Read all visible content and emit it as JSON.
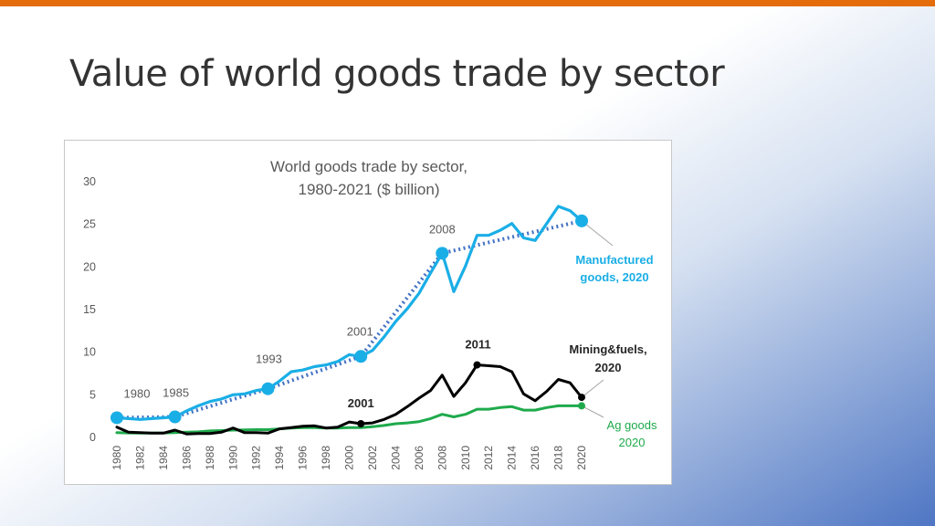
{
  "slide": {
    "title": "Value of world goods trade by sector"
  },
  "chart_data": {
    "type": "line",
    "title_lines": [
      "World goods trade by sector,",
      "1980-2021 ($ billion)"
    ],
    "xlabel": "",
    "ylabel": "",
    "xlim": [
      1980,
      2020
    ],
    "ylim": [
      0,
      30
    ],
    "yticks": [
      0,
      5,
      10,
      15,
      20,
      25,
      30
    ],
    "xticks": [
      1980,
      1982,
      1984,
      1986,
      1988,
      1990,
      1992,
      1994,
      1996,
      1998,
      2000,
      2002,
      2004,
      2006,
      2008,
      2010,
      2012,
      2014,
      2016,
      2018,
      2020
    ],
    "grid": false,
    "series": [
      {
        "label": "Manufactured goods, 2020",
        "label_lines": [
          "Manufactured",
          "goods, 2020"
        ],
        "color": "#1aaee6",
        "x": [
          1980,
          1981,
          1982,
          1983,
          1984,
          1985,
          1986,
          1987,
          1988,
          1989,
          1990,
          1991,
          1992,
          1993,
          1994,
          1995,
          1996,
          1997,
          1998,
          1999,
          2000,
          2001,
          2002,
          2003,
          2004,
          2005,
          2006,
          2007,
          2008,
          2009,
          2010,
          2011,
          2012,
          2013,
          2014,
          2015,
          2016,
          2017,
          2018,
          2019,
          2020
        ],
        "values": [
          2.2,
          2.1,
          2.0,
          2.1,
          2.2,
          2.3,
          3.0,
          3.6,
          4.1,
          4.4,
          4.9,
          5.0,
          5.4,
          5.6,
          6.5,
          7.6,
          7.8,
          8.2,
          8.4,
          8.8,
          9.6,
          9.4,
          10.1,
          11.7,
          13.5,
          15.0,
          16.8,
          19.2,
          21.5,
          17.0,
          20.0,
          23.6,
          23.6,
          24.2,
          25.0,
          23.3,
          23.0,
          25.0,
          27.0,
          26.5,
          25.3
        ]
      },
      {
        "label": "Mining&fuels, 2020",
        "label_lines": [
          "Mining&fuels,",
          "2020"
        ],
        "color": "#000000",
        "x": [
          1980,
          1981,
          1982,
          1983,
          1984,
          1985,
          1986,
          1987,
          1988,
          1989,
          1990,
          1991,
          1992,
          1993,
          1994,
          1995,
          1996,
          1997,
          1998,
          1999,
          2000,
          2001,
          2002,
          2003,
          2004,
          2005,
          2006,
          2007,
          2008,
          2009,
          2010,
          2011,
          2012,
          2013,
          2014,
          2015,
          2016,
          2017,
          2018,
          2019,
          2020
        ],
        "values": [
          1.1,
          0.5,
          0.45,
          0.4,
          0.4,
          0.75,
          0.3,
          0.35,
          0.35,
          0.5,
          1.0,
          0.45,
          0.45,
          0.4,
          0.9,
          1.05,
          1.2,
          1.25,
          1.0,
          1.1,
          1.7,
          1.5,
          1.6,
          2.0,
          2.6,
          3.5,
          4.5,
          5.4,
          7.2,
          4.7,
          6.3,
          8.4,
          8.3,
          8.2,
          7.6,
          5.0,
          4.2,
          5.3,
          6.7,
          6.3,
          4.6
        ]
      },
      {
        "label": "Ag goods 2020",
        "label_lines": [
          "Ag goods",
          "2020"
        ],
        "color": "#1faa4c",
        "x": [
          1980,
          1981,
          1982,
          1983,
          1984,
          1985,
          1986,
          1987,
          1988,
          1989,
          1990,
          1991,
          1992,
          1993,
          1994,
          1995,
          1996,
          1997,
          1998,
          1999,
          2000,
          2001,
          2002,
          2003,
          2004,
          2005,
          2006,
          2007,
          2008,
          2009,
          2010,
          2011,
          2012,
          2013,
          2014,
          2015,
          2016,
          2017,
          2018,
          2019,
          2020
        ],
        "values": [
          0.45,
          0.42,
          0.4,
          0.4,
          0.42,
          0.45,
          0.5,
          0.55,
          0.65,
          0.7,
          0.75,
          0.78,
          0.8,
          0.8,
          0.9,
          1.0,
          1.05,
          1.05,
          1.0,
          1.0,
          1.05,
          1.05,
          1.15,
          1.3,
          1.5,
          1.6,
          1.75,
          2.1,
          2.6,
          2.3,
          2.6,
          3.2,
          3.2,
          3.4,
          3.5,
          3.1,
          3.1,
          3.4,
          3.6,
          3.6,
          3.6
        ]
      },
      {
        "label": "Manufactured goods trend",
        "style": "dotted",
        "color": "#4472c4",
        "x": [
          1980,
          1985,
          1993,
          2001,
          2008,
          2020
        ],
        "values": [
          2.2,
          2.3,
          5.6,
          9.4,
          21.5,
          25.3
        ]
      }
    ],
    "annotations": [
      {
        "text": "1980",
        "x": 1980,
        "y": 2.2
      },
      {
        "text": "1985",
        "x": 1985,
        "y": 2.3
      },
      {
        "text": "1993",
        "x": 1993,
        "y": 5.6
      },
      {
        "text": "2001",
        "x": 2001,
        "y": 9.4
      },
      {
        "text": "2008",
        "x": 2008,
        "y": 21.5
      },
      {
        "text": "2011",
        "x": 2011,
        "y": 8.4
      },
      {
        "text": "2001",
        "x": 2001,
        "y": 1.5
      }
    ]
  }
}
